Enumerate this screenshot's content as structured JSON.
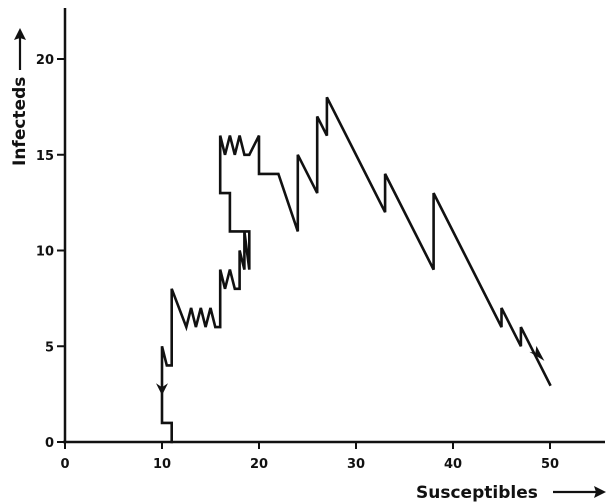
{
  "chart_data": {
    "type": "line",
    "xlabel": "Susceptibles",
    "ylabel": "Infecteds",
    "xlim": [
      0,
      55
    ],
    "ylim": [
      0,
      22
    ],
    "x_ticks": [
      0,
      10,
      20,
      30,
      40,
      50
    ],
    "y_ticks": [
      0,
      5,
      10,
      15,
      20
    ],
    "grid": false,
    "series": [
      {
        "points": [
          [
            11,
            0
          ],
          [
            11,
            1
          ],
          [
            10,
            1
          ],
          [
            10,
            5
          ],
          [
            10.5,
            4
          ],
          [
            11,
            4
          ],
          [
            11,
            8
          ],
          [
            12.5,
            6
          ],
          [
            13,
            7
          ],
          [
            13.5,
            6
          ],
          [
            14,
            7
          ],
          [
            14.5,
            6
          ],
          [
            15,
            7
          ],
          [
            15.5,
            6
          ],
          [
            16,
            6
          ],
          [
            16,
            9
          ],
          [
            16.5,
            8
          ],
          [
            17,
            9
          ],
          [
            17.5,
            8
          ],
          [
            18,
            8
          ],
          [
            18,
            10
          ],
          [
            18.5,
            9
          ],
          [
            18.5,
            11
          ],
          [
            19,
            9
          ],
          [
            19,
            11
          ],
          [
            17,
            11
          ],
          [
            17,
            13
          ],
          [
            16,
            13
          ],
          [
            16,
            16
          ],
          [
            16.5,
            15
          ],
          [
            17,
            16
          ],
          [
            17.5,
            15
          ],
          [
            18,
            16
          ],
          [
            18.5,
            15
          ],
          [
            19,
            15
          ],
          [
            20,
            16
          ],
          [
            20,
            14
          ],
          [
            22,
            14
          ],
          [
            24,
            11
          ],
          [
            24,
            15
          ],
          [
            26,
            13
          ],
          [
            26,
            17
          ],
          [
            27,
            16
          ],
          [
            27,
            18
          ],
          [
            33,
            12
          ],
          [
            33,
            14
          ],
          [
            38,
            9
          ],
          [
            38,
            13
          ],
          [
            45,
            6
          ],
          [
            45,
            7
          ],
          [
            47,
            5
          ],
          [
            47,
            6
          ],
          [
            50,
            3
          ]
        ]
      }
    ],
    "arrows": [
      {
        "x": 10,
        "y": 2.7,
        "direction": "down"
      },
      {
        "x": 48.7,
        "y": 4.5,
        "direction": "down-right"
      }
    ]
  }
}
